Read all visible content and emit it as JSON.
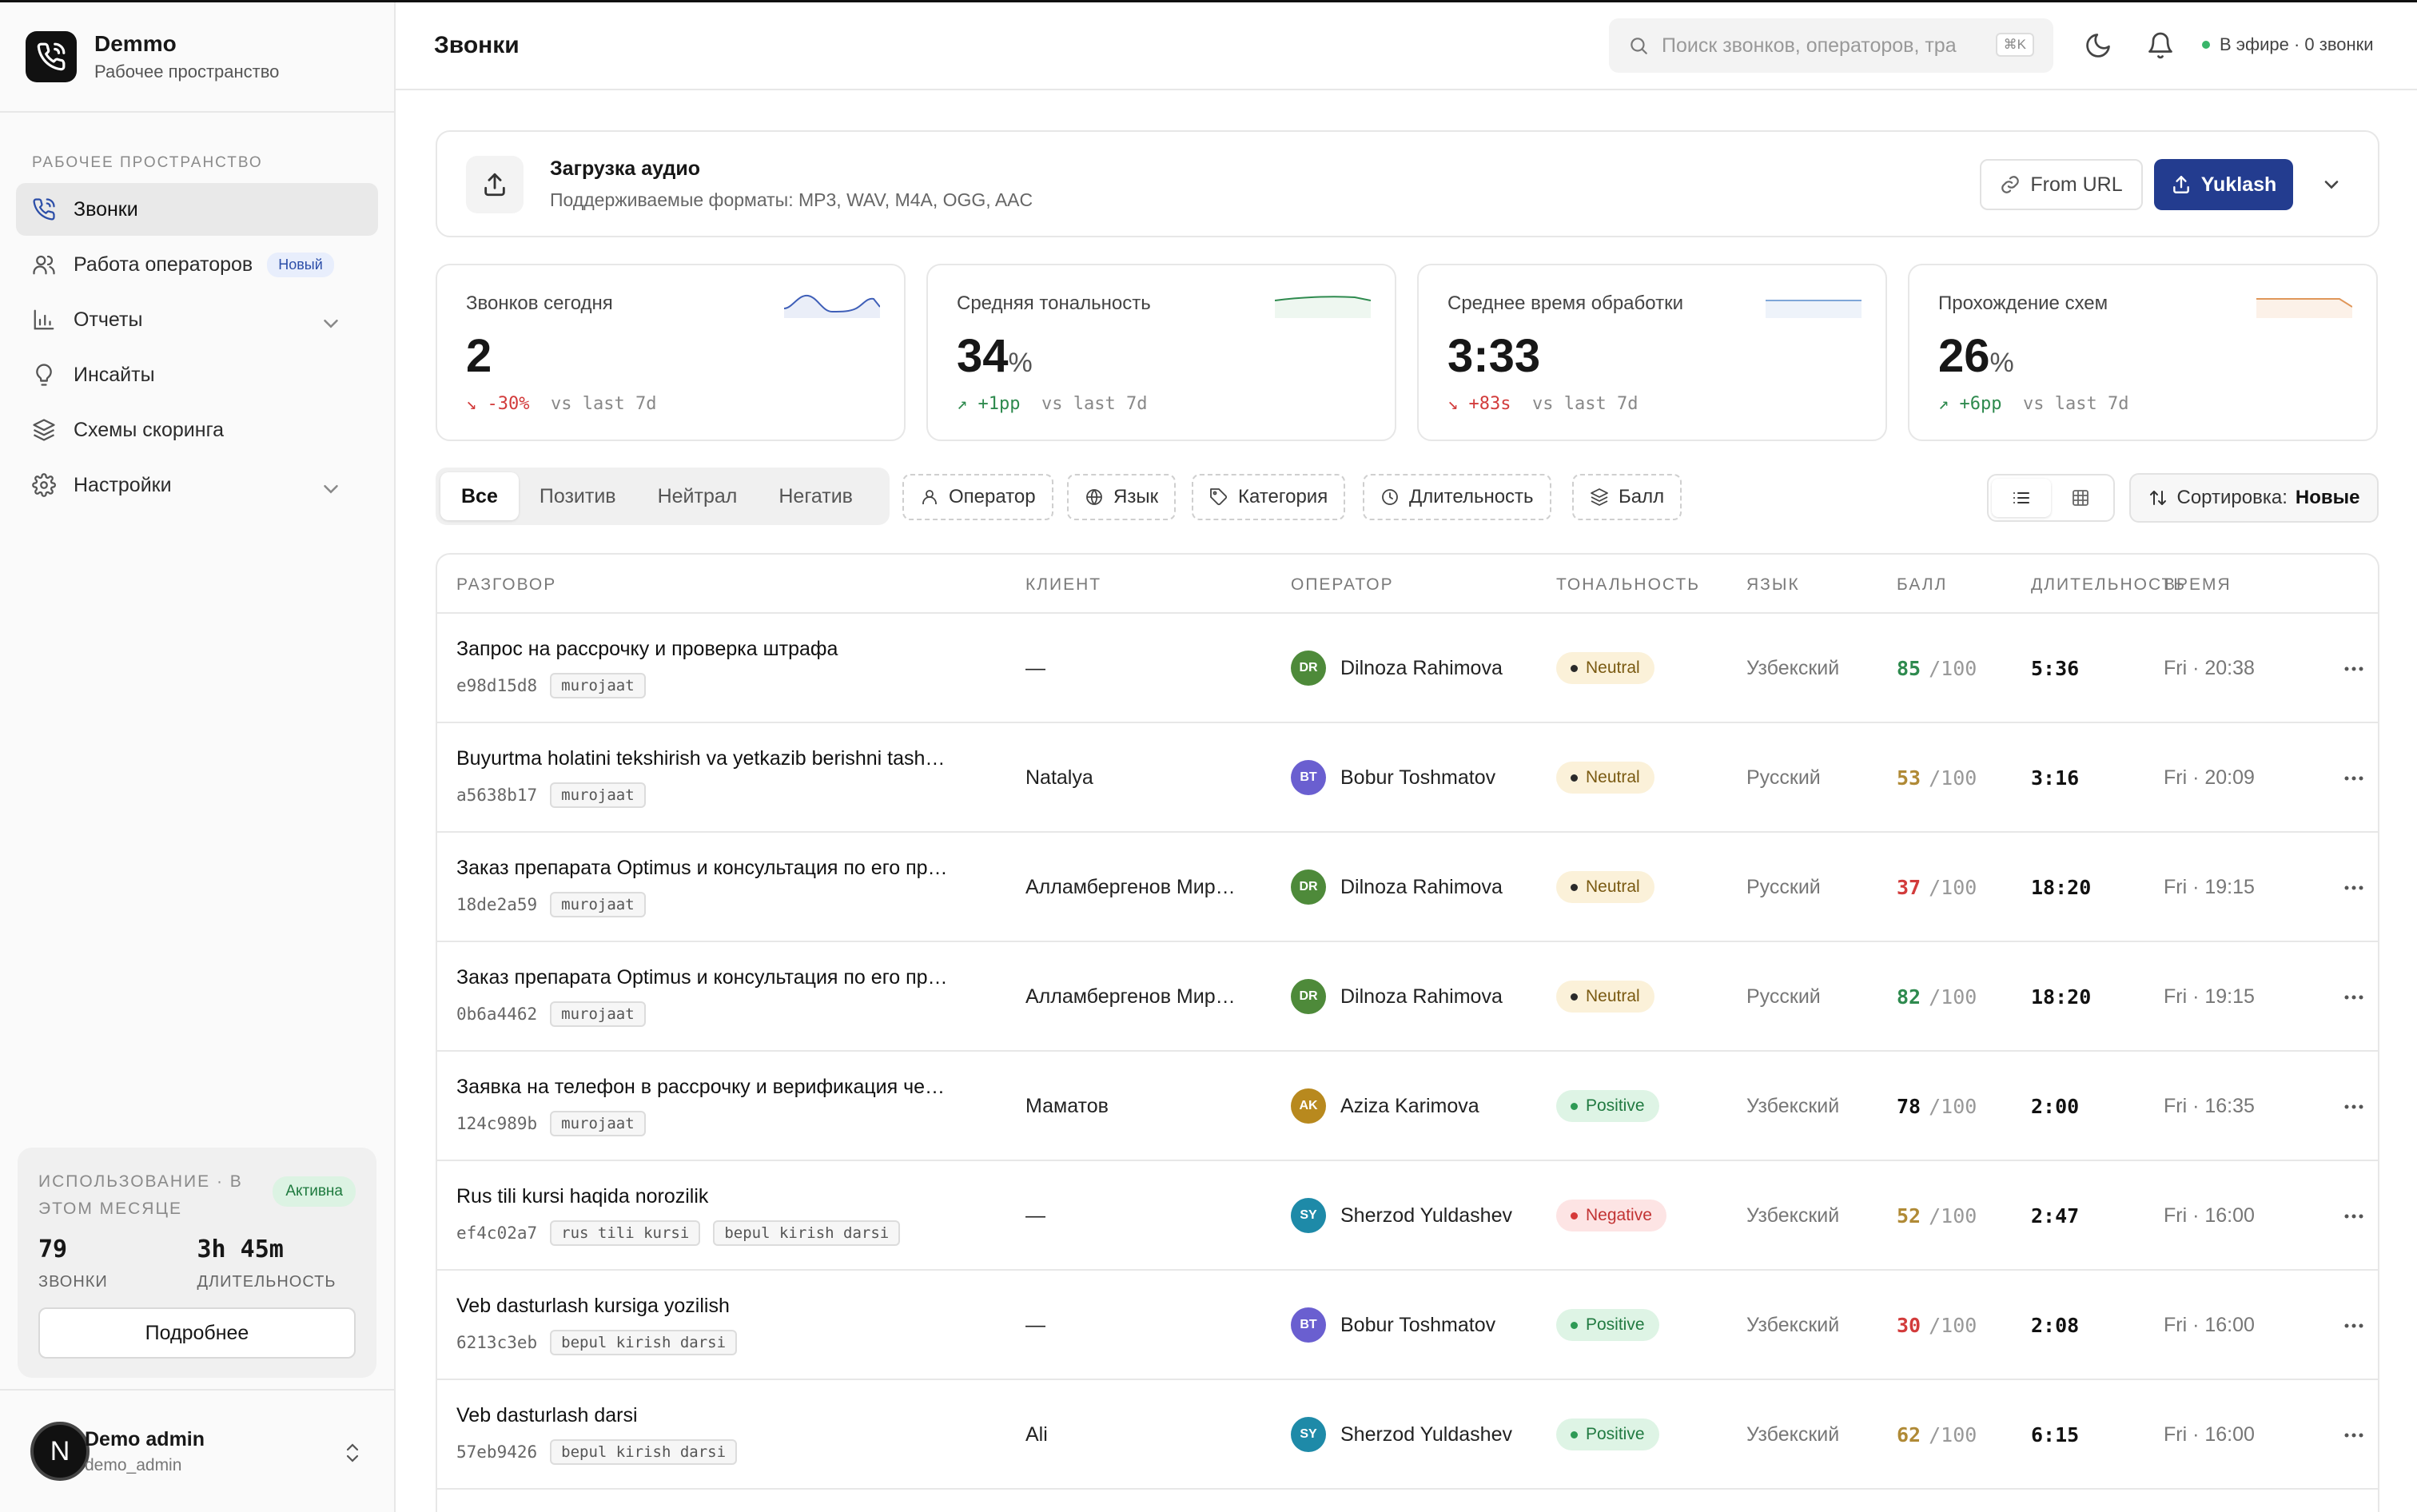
{
  "sidebar": {
    "brand": {
      "name": "Demmo",
      "subtitle": "Рабочее пространство"
    },
    "section_label": "РАБОЧЕЕ ПРОСТРАНСТВО",
    "items": [
      {
        "label": "Звонки",
        "icon": "phone-icon",
        "active": true
      },
      {
        "label": "Работа операторов",
        "icon": "users-icon",
        "badge": "Новый"
      },
      {
        "label": "Отчеты",
        "icon": "bar-chart-icon",
        "expandable": true
      },
      {
        "label": "Инсайты",
        "icon": "lightbulb-icon"
      },
      {
        "label": "Схемы скоринга",
        "icon": "layers-icon"
      },
      {
        "label": "Настройки",
        "icon": "gear-icon",
        "expandable": true
      }
    ],
    "usage": {
      "label": "ИСПОЛЬЗОВАНИЕ · В ЭТОМ МЕСЯЦЕ",
      "badge": "Активна",
      "calls_value": "79",
      "calls_label": "ЗВОНКИ",
      "duration_value": "3h 45m",
      "duration_label": "ДЛИТЕЛЬНОСТЬ",
      "button": "Подробнее"
    },
    "user": {
      "initial": "N",
      "name": "Demo admin",
      "login": "demo_admin"
    }
  },
  "header": {
    "title": "Звонки",
    "search_placeholder": "Поиск звонков, операторов, тра",
    "shortcut": "⌘K",
    "live_status": "В эфире · 0 звонки"
  },
  "upload": {
    "title": "Загрузка аудио",
    "subtitle": "Поддерживаемые форматы: MP3, WAV, M4A, OGG, AAC",
    "from_url": "From URL",
    "upload_button": "Yuklash"
  },
  "stats": [
    {
      "label": "Звонков сегодня",
      "value": "2",
      "unit": "",
      "delta": "-30%",
      "direction": "down",
      "compare": "vs last 7d",
      "color": "#3f5fb8"
    },
    {
      "label": "Средняя тональность",
      "value": "34",
      "unit": "%",
      "delta": "+1pp",
      "direction": "up",
      "compare": "vs last 7d",
      "color": "#2e8a4e"
    },
    {
      "label": "Среднее время обработки",
      "value": "3:33",
      "unit": "",
      "delta": "+83s",
      "direction": "down",
      "compare": "vs last 7d",
      "color": "#7fa6d8"
    },
    {
      "label": "Прохождение схем",
      "value": "26",
      "unit": "%",
      "delta": "+6pp",
      "direction": "up",
      "compare": "vs last 7d",
      "color": "#e0975a"
    }
  ],
  "filters": {
    "segments": [
      "Все",
      "Позитив",
      "Нейтрал",
      "Негатив"
    ],
    "active_segment": "Все",
    "chips": [
      "Оператор",
      "Язык",
      "Категория",
      "Длительность",
      "Балл"
    ],
    "sort_label": "Сортировка:",
    "sort_value": "Новые"
  },
  "table": {
    "columns": [
      "РАЗГОВОР",
      "КЛИЕНТ",
      "ОПЕРАТОР",
      "ТОНАЛЬНОСТЬ",
      "ЯЗЫК",
      "БАЛЛ",
      "ДЛИТЕЛЬНОСТЬ",
      "ВРЕМЯ"
    ],
    "score_suffix": "/100",
    "rows": [
      {
        "title": "Запрос на рассрочку и проверка штрафа",
        "id": "e98d15d8",
        "tags": [
          "murojaat"
        ],
        "client": "—",
        "operator_initials": "DR",
        "operator": "Dilnoza Rahimova",
        "op_color": "#4e8a3a",
        "tone": "Neutral",
        "lang": "Узбекский",
        "score": "85",
        "score_class": "s-green",
        "duration": "5:36",
        "time": "Fri · 20:38"
      },
      {
        "title": "Buyurtma holatini tekshirish va yetkazib berishni tash…",
        "id": "a5638b17",
        "tags": [
          "murojaat"
        ],
        "client": "Natalya",
        "operator_initials": "BT",
        "operator": "Bobur Toshmatov",
        "op_color": "#6a5fd0",
        "tone": "Neutral",
        "lang": "Русский",
        "score": "53",
        "score_class": "s-amber",
        "duration": "3:16",
        "time": "Fri · 20:09"
      },
      {
        "title": "Заказ препарата Optimus и консультация по его пр…",
        "id": "18de2a59",
        "tags": [
          "murojaat"
        ],
        "client": "Алламбергенов Мир…",
        "operator_initials": "DR",
        "operator": "Dilnoza Rahimova",
        "op_color": "#4e8a3a",
        "tone": "Neutral",
        "lang": "Русский",
        "score": "37",
        "score_class": "s-red",
        "duration": "18:20",
        "time": "Fri · 19:15"
      },
      {
        "title": "Заказ препарата Optimus и консультация по его пр…",
        "id": "0b6a4462",
        "tags": [
          "murojaat"
        ],
        "client": "Алламбергенов Мир…",
        "operator_initials": "DR",
        "operator": "Dilnoza Rahimova",
        "op_color": "#4e8a3a",
        "tone": "Neutral",
        "lang": "Русский",
        "score": "82",
        "score_class": "s-green",
        "duration": "18:20",
        "time": "Fri · 19:15"
      },
      {
        "title": "Заявка на телефон в рассрочку и верификация че…",
        "id": "124c989b",
        "tags": [
          "murojaat"
        ],
        "client": "Маматов",
        "operator_initials": "AK",
        "operator": "Aziza Karimova",
        "op_color": "#b8891e",
        "tone": "Positive",
        "lang": "Узбекский",
        "score": "78",
        "score_class": "s-dark",
        "duration": "2:00",
        "time": "Fri · 16:35"
      },
      {
        "title": "Rus tili kursi haqida norozilik",
        "id": "ef4c02a7",
        "tags": [
          "rus tili kursi",
          "bepul kirish darsi"
        ],
        "client": "—",
        "operator_initials": "SY",
        "operator": "Sherzod Yuldashev",
        "op_color": "#1e8aa8",
        "tone": "Negative",
        "lang": "Узбекский",
        "score": "52",
        "score_class": "s-amber",
        "duration": "2:47",
        "time": "Fri · 16:00"
      },
      {
        "title": "Veb dasturlash kursiga yozilish",
        "id": "6213c3eb",
        "tags": [
          "bepul kirish darsi"
        ],
        "client": "—",
        "operator_initials": "BT",
        "operator": "Bobur Toshmatov",
        "op_color": "#6a5fd0",
        "tone": "Positive",
        "lang": "Узбекский",
        "score": "30",
        "score_class": "s-red",
        "duration": "2:08",
        "time": "Fri · 16:00"
      },
      {
        "title": "Veb dasturlash darsi",
        "id": "57eb9426",
        "tags": [
          "bepul kirish darsi"
        ],
        "client": "Ali",
        "operator_initials": "SY",
        "operator": "Sherzod Yuldashev",
        "op_color": "#1e8aa8",
        "tone": "Positive",
        "lang": "Узбекский",
        "score": "62",
        "score_class": "s-amber",
        "duration": "6:15",
        "time": "Fri · 16:00"
      }
    ]
  }
}
